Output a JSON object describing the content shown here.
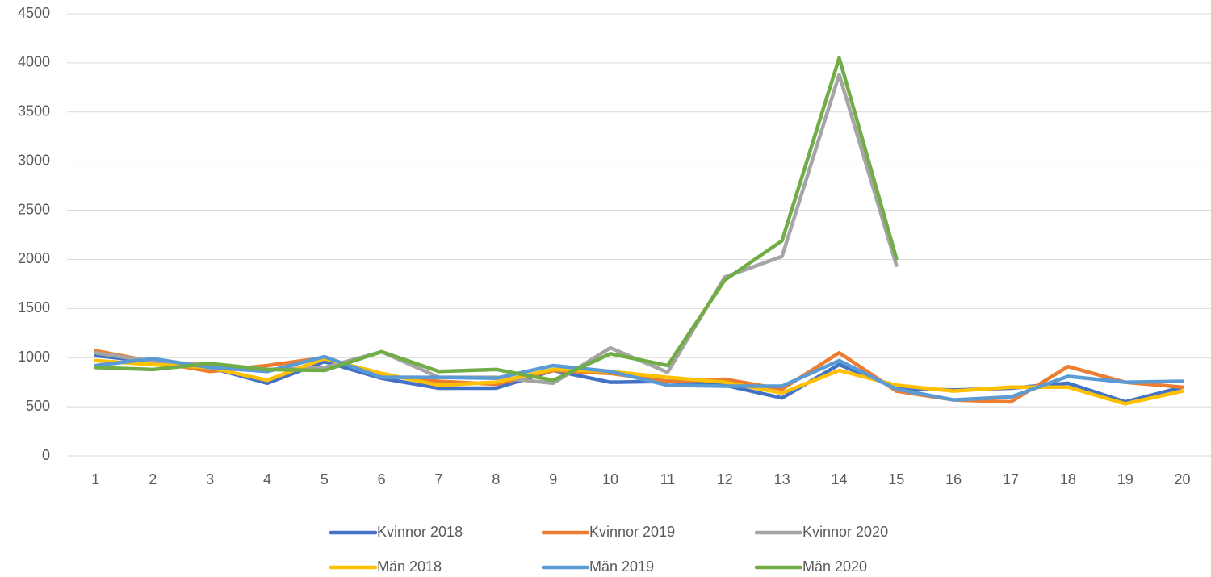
{
  "chart_data": {
    "type": "line",
    "categories": [
      "1",
      "2",
      "3",
      "4",
      "5",
      "6",
      "7",
      "8",
      "9",
      "10",
      "11",
      "12",
      "13",
      "14",
      "15",
      "16",
      "17",
      "18",
      "19",
      "20"
    ],
    "series": [
      {
        "name": "Kvinnor 2018",
        "color": "#4472c4",
        "values": [
          1020,
          960,
          900,
          740,
          960,
          790,
          690,
          690,
          870,
          750,
          760,
          720,
          590,
          930,
          690,
          670,
          690,
          740,
          550,
          700
        ]
      },
      {
        "name": "Kvinnor 2019",
        "color": "#ed7d31",
        "values": [
          1070,
          960,
          860,
          920,
          1000,
          820,
          760,
          730,
          870,
          840,
          760,
          780,
          680,
          1050,
          660,
          570,
          550,
          910,
          750,
          700
        ]
      },
      {
        "name": "Kvinnor 2020",
        "color": "#a5a5a5",
        "values": [
          1050,
          960,
          930,
          880,
          900,
          1060,
          800,
          800,
          740,
          1100,
          850,
          1820,
          2030,
          3880,
          1940,
          null,
          null,
          null,
          null,
          null
        ]
      },
      {
        "name": "Män 2018",
        "color": "#ffc000",
        "values": [
          970,
          930,
          900,
          770,
          990,
          840,
          720,
          750,
          880,
          860,
          800,
          750,
          640,
          870,
          720,
          660,
          700,
          700,
          530,
          660
        ]
      },
      {
        "name": "Män 2019",
        "color": "#5b9bd5",
        "values": [
          920,
          990,
          900,
          860,
          1010,
          800,
          800,
          790,
          920,
          860,
          720,
          710,
          710,
          970,
          680,
          570,
          600,
          810,
          750,
          760
        ]
      },
      {
        "name": "Män 2020",
        "color": "#70ad47",
        "values": [
          900,
          880,
          940,
          880,
          870,
          1060,
          860,
          880,
          770,
          1040,
          920,
          1790,
          2190,
          4050,
          2010,
          null,
          null,
          null,
          null,
          null
        ]
      }
    ],
    "ylim": [
      0,
      4500
    ],
    "yticks": [
      0,
      500,
      1000,
      1500,
      2000,
      2500,
      3000,
      3500,
      4000,
      4500
    ],
    "grid": true,
    "legend": "bottom"
  }
}
